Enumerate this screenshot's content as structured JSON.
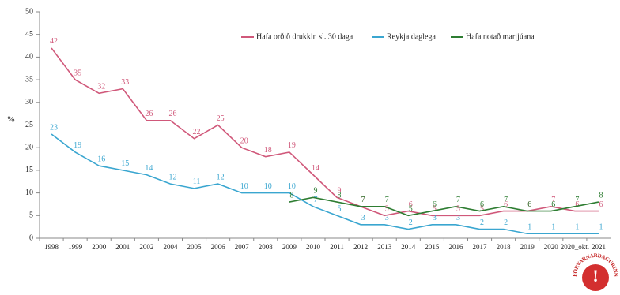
{
  "chart_data": {
    "type": "line",
    "y_label": "%",
    "categories": [
      "1998",
      "1999",
      "2000",
      "2001",
      "2002",
      "2004",
      "2005",
      "2006",
      "2007",
      "2008",
      "2009",
      "2010",
      "2011",
      "2012",
      "2013",
      "2014",
      "2015",
      "2016",
      "2017",
      "2018",
      "2019",
      "2020",
      "2020_okt.",
      "2021"
    ],
    "series": [
      {
        "name": "Hafa orðið drukkin sl. 30 daga",
        "color": "#d0587a",
        "values": [
          42,
          35,
          32,
          33,
          26,
          26,
          22,
          25,
          20,
          18,
          19,
          14,
          9,
          7,
          5,
          6,
          5,
          5,
          5,
          6,
          6,
          7,
          6,
          6
        ]
      },
      {
        "name": "Reykja daglega",
        "color": "#3aa6d0",
        "values": [
          23,
          19,
          16,
          15,
          14,
          12,
          11,
          12,
          10,
          10,
          10,
          7,
          5,
          3,
          3,
          2,
          3,
          3,
          2,
          2,
          1,
          1,
          1,
          1
        ]
      },
      {
        "name": "Hafa notað marijúana",
        "color": "#2e7d32",
        "values": [
          null,
          null,
          null,
          null,
          null,
          null,
          null,
          null,
          null,
          null,
          8,
          9,
          8,
          7,
          7,
          5,
          6,
          7,
          6,
          7,
          6,
          6,
          7,
          8
        ]
      }
    ],
    "ylim": [
      0,
      50
    ],
    "yticks": [
      0,
      5,
      10,
      15,
      20,
      25,
      30,
      35,
      40,
      45,
      50
    ],
    "legend": "top",
    "data_labels": true,
    "logo_text": "FORVARNARDAGURINN"
  }
}
